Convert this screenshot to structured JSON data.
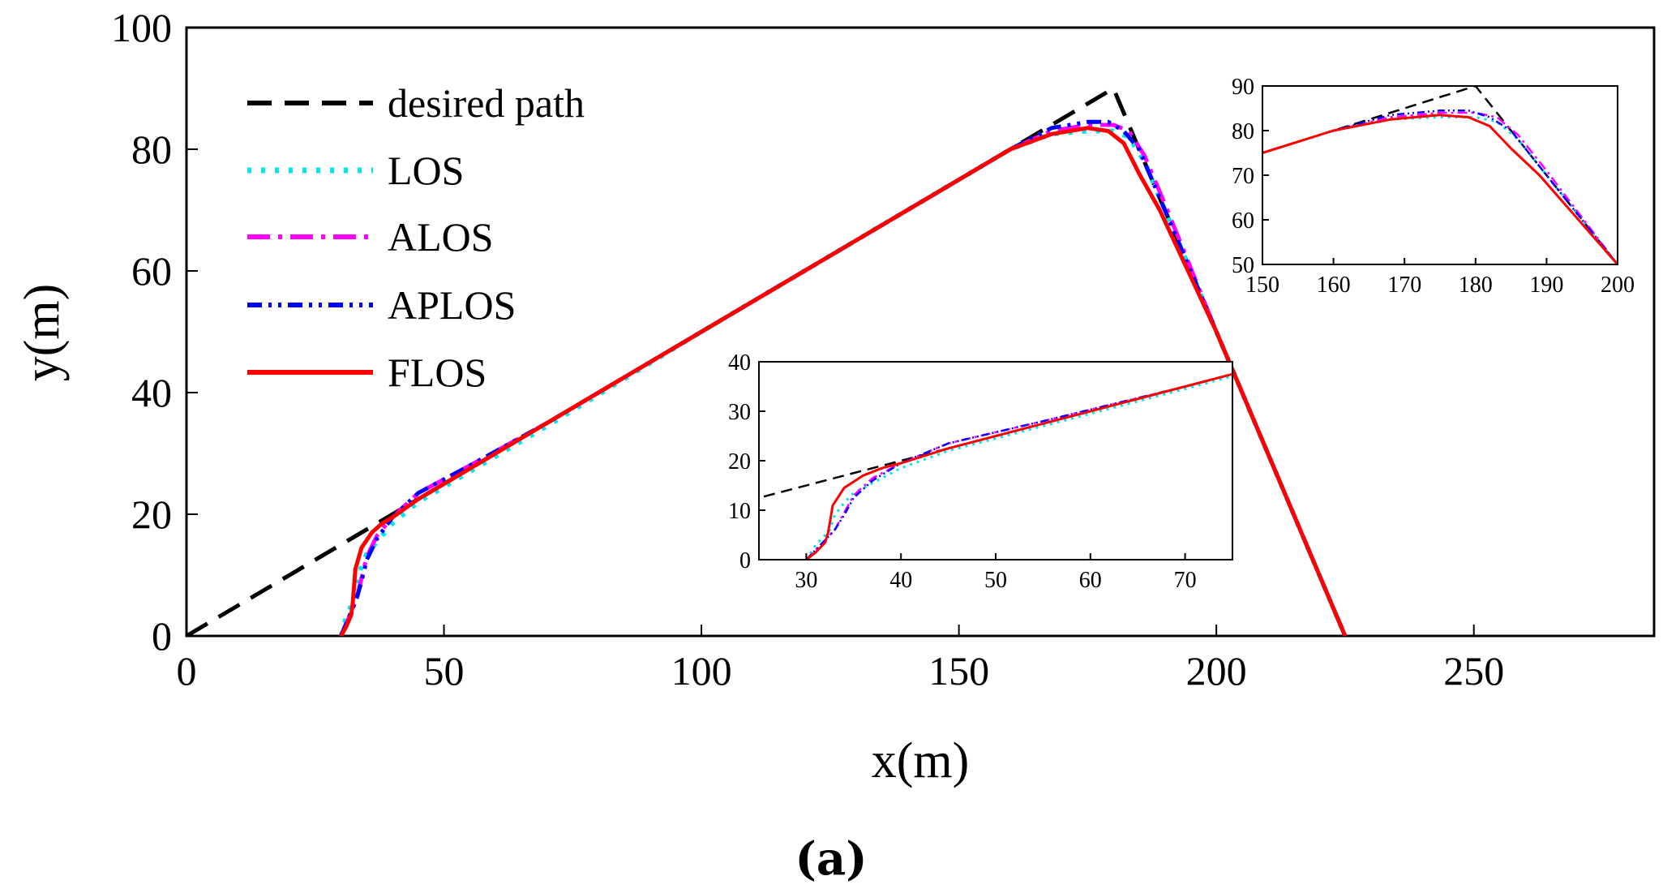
{
  "chart_data": [
    {
      "type": "line",
      "id": "main",
      "xlabel": "x(m)",
      "ylabel": "y(m)",
      "xlim": [
        0,
        285
      ],
      "ylim": [
        0,
        100
      ],
      "xticks": [
        0,
        50,
        100,
        150,
        200,
        250
      ],
      "yticks": [
        0,
        20,
        40,
        60,
        80,
        100
      ],
      "grid": false,
      "legend_position": "top-left",
      "series": [
        {
          "name": "desired path",
          "color": "#000000",
          "x": [
            0,
            180,
            225
          ],
          "y": [
            0,
            90,
            0
          ]
        },
        {
          "name": "LOS",
          "color": "#00e5ee",
          "x": [
            30,
            31,
            32.5,
            33,
            34,
            35,
            37,
            40,
            45,
            55,
            70,
            100,
            130,
            160,
            168,
            175,
            180,
            183,
            186,
            190,
            200,
            225
          ],
          "y": [
            0,
            3,
            6,
            9,
            11.5,
            13.5,
            15.5,
            18.5,
            22,
            27,
            34.5,
            50,
            65,
            80,
            82.5,
            83,
            83,
            82,
            78,
            70,
            50,
            0
          ]
        },
        {
          "name": "ALOS",
          "color": "#ff00ff",
          "x": [
            30,
            31,
            32,
            33,
            34,
            35,
            37,
            40,
            45,
            55,
            70,
            100,
            130,
            160,
            168,
            175,
            180,
            183,
            186,
            190,
            200,
            225
          ],
          "y": [
            0,
            2,
            4,
            6,
            9.5,
            13,
            16.5,
            19.5,
            23.5,
            28,
            35,
            50,
            65,
            80,
            83,
            84,
            84,
            83,
            79,
            71,
            50,
            0
          ]
        },
        {
          "name": "APLOS",
          "color": "#0000ff",
          "x": [
            30,
            31,
            32,
            33,
            34,
            35,
            37,
            40,
            45,
            55,
            70,
            100,
            130,
            160,
            168,
            175,
            179,
            182,
            185,
            189,
            200,
            225
          ],
          "y": [
            0,
            2,
            4,
            6,
            9,
            12.5,
            16,
            19.5,
            23.5,
            28,
            35,
            50,
            65,
            80,
            83.5,
            84.5,
            84.5,
            83,
            80,
            72,
            50,
            0
          ]
        },
        {
          "name": "FLOS",
          "color": "#ff0000",
          "x": [
            30,
            31,
            32,
            32.3,
            32.8,
            34,
            36,
            38,
            40,
            45,
            55,
            70,
            100,
            130,
            160,
            168,
            175,
            179,
            182,
            185,
            189,
            200,
            225
          ],
          "y": [
            0,
            1.5,
            3.5,
            5.5,
            11,
            14.5,
            17,
            18.5,
            19.5,
            22.5,
            27.5,
            35,
            50,
            65,
            80,
            82.5,
            83.5,
            83,
            81,
            76,
            70,
            50,
            0
          ]
        }
      ]
    },
    {
      "type": "line",
      "id": "inset-left",
      "xlim": [
        25,
        75
      ],
      "ylim": [
        0,
        40
      ],
      "xticks": [
        30,
        40,
        50,
        60,
        70
      ],
      "yticks": [
        0,
        10,
        20,
        30,
        40
      ],
      "grid": false
    },
    {
      "type": "line",
      "id": "inset-right",
      "xlim": [
        150,
        200
      ],
      "ylim": [
        50,
        90
      ],
      "xticks": [
        150,
        160,
        170,
        180,
        190,
        200
      ],
      "yticks": [
        50,
        60,
        70,
        80,
        90
      ],
      "grid": false
    }
  ],
  "caption": "(a)"
}
